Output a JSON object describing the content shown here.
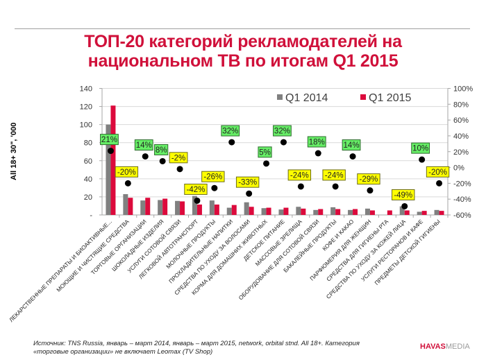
{
  "slide": {
    "title_line1": "ТОП-20 категорий рекламодателей на",
    "title_line2": "национальном ТВ по итогам Q1 2015",
    "footer_line1": "Источник: TNS Russia, январь – март 2014, январь – март 2015, network, orbital stnd. All 18+. Категория",
    "footer_line2": "«торговые организации» не включает Leomax (TV Shop)",
    "logo_havas": "HAVAS",
    "logo_media": "MEDIA"
  },
  "chart_data": {
    "type": "bar",
    "title": "ТОП-20 категорий рекламодателей на национальном ТВ по итогам Q1 2015",
    "xlabel": "",
    "ylabel": "All 18+ 30\", '000",
    "y2label": "",
    "ylim": [
      0,
      140
    ],
    "y2lim": [
      -0.6,
      1.0
    ],
    "yticks": [
      "-",
      "20",
      "40",
      "60",
      "80",
      "100",
      "120",
      "140"
    ],
    "y2ticks": [
      "-60%",
      "-40%",
      "-20%",
      "0%",
      "20%",
      "40%",
      "60%",
      "80%",
      "100%"
    ],
    "grid": true,
    "legend_position": "top-right",
    "colors": {
      "Q1 2014": "#808080",
      "Q1 2015": "#dc0a3c",
      "positive_label": "#66ee66",
      "negative_label": "#ffff00",
      "dot": "#000000"
    },
    "categories": [
      "ЛЕКАРСТВЕННЫЕ ПРЕПАРАТЫ И БИОАКТИВНЫЕ...",
      "МОЮЩИЕ И ЧИСТЯЩИЕ СРЕДСТВА",
      "ТОРГОВЫЕ ОРГАНИЗАЦИИ",
      "ШОКОЛАДНЫЕ ИЗДЕЛИЯ",
      "УСЛУГИ СОТОВОЙ СВЯЗИ",
      "ЛЕГКОВОЙ АВТОТРАНСПОРТ",
      "МОЛОЧНЫЕ ПРОДУКТЫ",
      "ПРОХЛАДИТЕЛЬНЫЕ НАПИТКИ",
      "СРЕДСТВА ПО УХОДУ ЗА ВОЛОСАМИ",
      "КОРМА ДЛЯ ДОМАШНИХ ЖИВОТНЫХ",
      "ДЕТСКОЕ ПИТАНИЕ",
      "МАССОВЫЕ ЗРЕЛИЩА",
      "ОБОРУДОВАНИЕ ДЛЯ СОТОВОЙ СВЯЗИ",
      "БАКАЛЕЙНЫЕ ПРОДУКТЫ",
      "КОФЕ И КАКАО",
      "ПАРФЮМЕРИЯ ДЛЯ ЖЕНЩИН",
      "СРЕДСТВА ДЛЯ ГИГИЕНЫ РТА",
      "СРЕДСТВА ПО УХОДУ ЗА КОЖЕЙ ЛИЦА",
      "УСЛУГИ РЕСТОРАНОВ И КАФЕ",
      "ПРЕДМЕТЫ ДЕТСКОЙ ГИГИЕНЫ"
    ],
    "series": [
      {
        "name": "Q1 2014",
        "axis": "left",
        "kind": "bar",
        "values": [
          100,
          23,
          16,
          16.5,
          15.5,
          21,
          16,
          8,
          14,
          7.5,
          6,
          9,
          5.5,
          8.5,
          5.5,
          7,
          0,
          9.5,
          3.5,
          5.5
        ]
      },
      {
        "name": "Q1 2015",
        "axis": "left",
        "kind": "bar",
        "values": [
          121,
          19,
          19,
          18,
          15,
          11.5,
          11.5,
          11,
          9,
          8,
          8,
          7,
          6.5,
          6.5,
          6.5,
          5,
          5,
          5,
          4.5,
          4.5
        ]
      },
      {
        "name": "Change",
        "axis": "right",
        "kind": "scatter",
        "values": [
          0.21,
          -0.2,
          0.14,
          0.08,
          -0.02,
          -0.42,
          -0.26,
          0.32,
          -0.33,
          0.05,
          0.32,
          -0.24,
          0.18,
          -0.24,
          0.14,
          -0.29,
          null,
          -0.49,
          0.1,
          -0.2
        ],
        "labels": [
          "21%",
          "-20%",
          "14%",
          "8%",
          "-2%",
          "-42%",
          "-26%",
          "32%",
          "-33%",
          "5%",
          "32%",
          "-24%",
          "18%",
          "-24%",
          "14%",
          "-29%",
          "",
          "-49%",
          "10%",
          "-20%"
        ]
      }
    ],
    "legend": [
      "Q1 2014",
      "Q1 2015"
    ]
  }
}
